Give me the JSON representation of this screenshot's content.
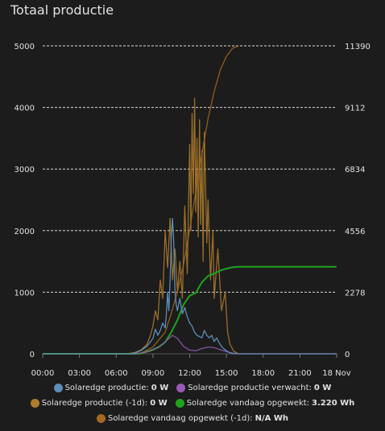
{
  "card": {
    "title": "Totaal productie"
  },
  "colors": {
    "background": "#1c1c1c",
    "grid": "#d8d8d8",
    "text": "#e1e1e1"
  },
  "chart_data": {
    "type": "line",
    "x_tick_labels": [
      "00:00",
      "03:00",
      "06:00",
      "09:00",
      "12:00",
      "15:00",
      "18:00",
      "21:00",
      "18 Nov"
    ],
    "x_range_hours": [
      0,
      24
    ],
    "y_left": {
      "ticks": [
        0,
        1000,
        2000,
        3000,
        4000,
        5000
      ],
      "range": [
        0,
        5000
      ],
      "unit": "W"
    },
    "y_right": {
      "ticks": [
        0,
        2278,
        4556,
        6834,
        9112,
        11390
      ],
      "range": [
        0,
        11390
      ],
      "unit": "Wh"
    },
    "grid": true,
    "legend_position": "bottom",
    "series": [
      {
        "name": "Solaredge productie (-1d)",
        "value_text": "0 W",
        "color": "#b07d2c",
        "axis": "left",
        "points": [
          [
            0,
            0
          ],
          [
            6.8,
            0
          ],
          [
            7.5,
            20
          ],
          [
            8,
            60
          ],
          [
            8.5,
            150
          ],
          [
            8.8,
            300
          ],
          [
            9,
            450
          ],
          [
            9.2,
            700
          ],
          [
            9.4,
            550
          ],
          [
            9.6,
            1200
          ],
          [
            9.8,
            900
          ],
          [
            10,
            2000
          ],
          [
            10.2,
            1400
          ],
          [
            10.4,
            2200
          ],
          [
            10.6,
            1200
          ],
          [
            10.8,
            1700
          ],
          [
            11,
            1000
          ],
          [
            11.2,
            1500
          ],
          [
            11.4,
            900
          ],
          [
            11.6,
            2400
          ],
          [
            11.8,
            1300
          ],
          [
            12,
            3400
          ],
          [
            12.1,
            2000
          ],
          [
            12.2,
            3900
          ],
          [
            12.3,
            2600
          ],
          [
            12.4,
            4150
          ],
          [
            12.5,
            2300
          ],
          [
            12.6,
            3500
          ],
          [
            12.7,
            1900
          ],
          [
            12.8,
            3800
          ],
          [
            12.9,
            2100
          ],
          [
            13,
            3300
          ],
          [
            13.1,
            1500
          ],
          [
            13.2,
            3600
          ],
          [
            13.4,
            1800
          ],
          [
            13.5,
            2500
          ],
          [
            13.7,
            1200
          ],
          [
            13.9,
            2000
          ],
          [
            14,
            900
          ],
          [
            14.3,
            1700
          ],
          [
            14.6,
            700
          ],
          [
            14.9,
            1000
          ],
          [
            15.1,
            350
          ],
          [
            15.3,
            150
          ],
          [
            15.6,
            40
          ],
          [
            16,
            0
          ],
          [
            24,
            0
          ]
        ]
      },
      {
        "name": "Solaredge vandaag opgewekt (-1d)",
        "value_text": "N/A Wh",
        "color": "#a56a1f",
        "axis": "right",
        "points": [
          [
            0,
            0
          ],
          [
            7,
            0
          ],
          [
            8,
            20
          ],
          [
            9,
            250
          ],
          [
            10,
            800
          ],
          [
            10.5,
            1500
          ],
          [
            11,
            2300
          ],
          [
            11.5,
            3300
          ],
          [
            12,
            4600
          ],
          [
            12.5,
            6000
          ],
          [
            13,
            7400
          ],
          [
            13.5,
            8700
          ],
          [
            14,
            9700
          ],
          [
            14.5,
            10500
          ],
          [
            15,
            11000
          ],
          [
            15.5,
            11300
          ],
          [
            16,
            11390
          ]
        ]
      },
      {
        "name": "Solaredge vandaag opgewekt",
        "value_text": "3.220 Wh",
        "color": "#1da41c",
        "axis": "right",
        "points": [
          [
            0,
            0
          ],
          [
            7.5,
            0
          ],
          [
            8,
            10
          ],
          [
            9,
            150
          ],
          [
            9.5,
            260
          ],
          [
            10,
            430
          ],
          [
            10.5,
            800
          ],
          [
            11,
            1250
          ],
          [
            11.5,
            1820
          ],
          [
            12,
            2150
          ],
          [
            12.5,
            2250
          ],
          [
            13,
            2650
          ],
          [
            13.5,
            2880
          ],
          [
            14,
            2970
          ],
          [
            14.5,
            3080
          ],
          [
            15,
            3150
          ],
          [
            15.5,
            3200
          ],
          [
            16,
            3220
          ],
          [
            24,
            3220
          ]
        ]
      },
      {
        "name": "Solaredge productie verwacht",
        "value_text": "0 W",
        "color": "#9b59b6",
        "axis": "left",
        "points": [
          [
            0,
            0
          ],
          [
            7.5,
            0
          ],
          [
            8.5,
            30
          ],
          [
            9.5,
            110
          ],
          [
            10.2,
            230
          ],
          [
            10.6,
            300
          ],
          [
            11,
            250
          ],
          [
            11.5,
            120
          ],
          [
            12,
            60
          ],
          [
            12.5,
            50
          ],
          [
            13,
            85
          ],
          [
            13.5,
            110
          ],
          [
            14,
            100
          ],
          [
            14.5,
            65
          ],
          [
            15,
            35
          ],
          [
            15.5,
            12
          ],
          [
            16,
            0
          ],
          [
            24,
            0
          ]
        ]
      },
      {
        "name": "Solaredge productie",
        "value_text": "0 W",
        "color": "#5b8db8",
        "axis": "left",
        "points": [
          [
            0,
            0
          ],
          [
            7.3,
            0
          ],
          [
            7.6,
            20
          ],
          [
            8,
            50
          ],
          [
            8.5,
            120
          ],
          [
            9,
            250
          ],
          [
            9.2,
            400
          ],
          [
            9.4,
            300
          ],
          [
            9.6,
            380
          ],
          [
            9.8,
            500
          ],
          [
            10,
            420
          ],
          [
            10.1,
            650
          ],
          [
            10.2,
            1000
          ],
          [
            10.3,
            700
          ],
          [
            10.4,
            1200
          ],
          [
            10.5,
            1900
          ],
          [
            10.6,
            2200
          ],
          [
            10.7,
            1800
          ],
          [
            10.8,
            1000
          ],
          [
            10.9,
            800
          ],
          [
            11,
            700
          ],
          [
            11.2,
            900
          ],
          [
            11.4,
            650
          ],
          [
            11.6,
            750
          ],
          [
            11.8,
            600
          ],
          [
            12,
            500
          ],
          [
            12.2,
            450
          ],
          [
            12.4,
            350
          ],
          [
            12.6,
            300
          ],
          [
            12.8,
            280
          ],
          [
            13,
            260
          ],
          [
            13.2,
            380
          ],
          [
            13.4,
            300
          ],
          [
            13.6,
            260
          ],
          [
            13.8,
            300
          ],
          [
            14,
            200
          ],
          [
            14.2,
            260
          ],
          [
            14.4,
            180
          ],
          [
            14.6,
            120
          ],
          [
            14.8,
            80
          ],
          [
            15,
            50
          ],
          [
            15.3,
            15
          ],
          [
            15.6,
            0
          ],
          [
            24,
            0
          ]
        ]
      }
    ]
  },
  "legend": {
    "rows": [
      [
        {
          "label": "Solaredge productie:",
          "value": "0 W",
          "color": "#5b8db8"
        },
        {
          "label": "Solaredge productie verwacht:",
          "value": "0 W",
          "color": "#9b59b6"
        }
      ],
      [
        {
          "label": "Solaredge productie (-1d):",
          "value": "0 W",
          "color": "#b07d2c"
        },
        {
          "label": "Solaredge vandaag opgewekt:",
          "value": "3.220 Wh",
          "color": "#1da41c"
        }
      ],
      [
        {
          "label": "Solaredge vandaag opgewekt (-1d):",
          "value": "N/A Wh",
          "color": "#a56a1f"
        }
      ]
    ]
  }
}
